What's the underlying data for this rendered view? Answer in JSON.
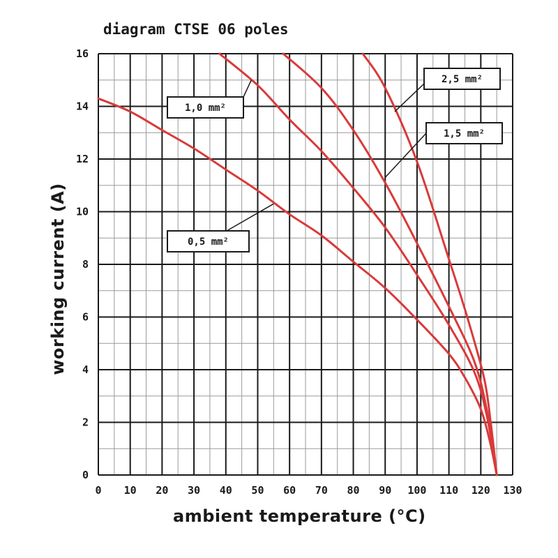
{
  "chart_data": {
    "type": "line",
    "title": "diagram CTSE 06 poles",
    "xlabel": "ambient temperature (°C)",
    "ylabel": "working current (A)",
    "xlim": [
      0,
      130
    ],
    "ylim": [
      0,
      16
    ],
    "x_ticks": [
      "0",
      "10",
      "20",
      "30",
      "40",
      "50",
      "60",
      "70",
      "80",
      "90",
      "100",
      "110",
      "120",
      "130"
    ],
    "y_ticks": [
      "0",
      "2",
      "4",
      "6",
      "8",
      "10",
      "12",
      "14",
      "16"
    ],
    "grid": true,
    "line_color": "#d93a3a",
    "series": [
      {
        "name": "0,5 mm²",
        "x": [
          0,
          10,
          20,
          30,
          40,
          50,
          60,
          70,
          80,
          90,
          100,
          110,
          115,
          120,
          123,
          125
        ],
        "y": [
          14.3,
          13.8,
          13.1,
          12.4,
          11.6,
          10.8,
          9.9,
          9.1,
          8.1,
          7.1,
          5.9,
          4.6,
          3.7,
          2.5,
          1.2,
          0
        ]
      },
      {
        "name": "1,0 mm²",
        "x": [
          38,
          50,
          60,
          70,
          80,
          90,
          100,
          110,
          118,
          122,
          125
        ],
        "y": [
          16,
          14.8,
          13.5,
          12.3,
          10.9,
          9.4,
          7.6,
          5.7,
          3.9,
          2.2,
          0
        ]
      },
      {
        "name": "1,5 mm²",
        "x": [
          58,
          70,
          80,
          90,
          100,
          110,
          118,
          122,
          125
        ],
        "y": [
          16,
          14.7,
          13.1,
          11.1,
          8.8,
          6.4,
          4.3,
          2.4,
          0
        ]
      },
      {
        "name": "2,5 mm²",
        "x": [
          83,
          90,
          100,
          110,
          116,
          121,
          123,
          125
        ],
        "y": [
          16,
          14.7,
          11.9,
          8.2,
          5.9,
          3.7,
          2.1,
          0
        ]
      }
    ],
    "labels": [
      "0,5 mm²",
      "1,0 mm²",
      "1,5 mm²",
      "2,5 mm²"
    ]
  }
}
